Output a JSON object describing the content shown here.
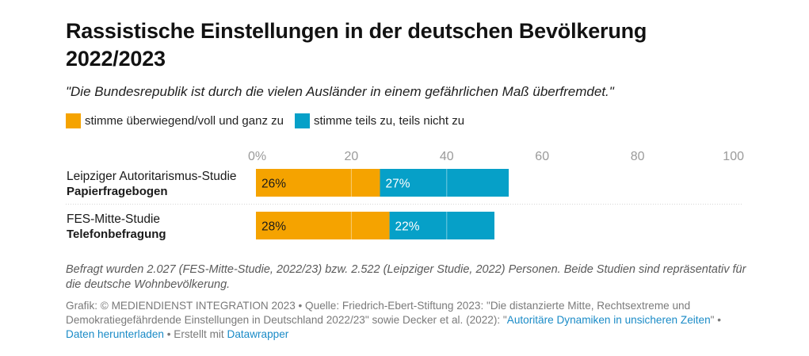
{
  "title": "Rassistische Einstellungen in der deutschen Bevölkerung 2022/2023",
  "subtitle": "\"Die Bundesrepublik ist durch die vielen Ausländer in einem gefährlichen Maß überfremdet.\"",
  "colors": {
    "agree": "#f5a300",
    "partial": "#06a0c8"
  },
  "chart_data": {
    "type": "bar",
    "orientation": "horizontal",
    "stacked": true,
    "categories": [
      {
        "line1": "Leipziger Autoritarismus-Studie",
        "line2": "Papierfragebogen"
      },
      {
        "line1": "FES-Mitte-Studie",
        "line2": "Telefonbefragung"
      }
    ],
    "series": [
      {
        "name": "stimme überwiegend/voll und ganz zu",
        "color": "#f5a300",
        "values": [
          26,
          28
        ],
        "labels": [
          "26%",
          "28%"
        ]
      },
      {
        "name": "stimme teils zu, teils nicht zu",
        "color": "#06a0c8",
        "values": [
          27,
          22
        ],
        "labels": [
          "27%",
          "22%"
        ]
      }
    ],
    "xlim": [
      0,
      100
    ],
    "xticks": [
      0,
      20,
      40,
      60,
      80,
      100
    ],
    "xtick_labels": [
      "0%",
      "20",
      "40",
      "60",
      "80",
      "100"
    ],
    "grid": true,
    "legend": "top-left"
  },
  "notes": "Befragt wurden 2.027 (FES-Mitte-Studie, 2022/23) bzw. 2.522 (Leipziger Studie, 2022) Personen. Beide Studien sind repräsentativ für die deutsche Wohnbevölkerung.",
  "footer": {
    "prefix": "Grafik: © MEDIENDIENST INTEGRATION 2023 • Quelle: Friedrich-Ebert-Stiftung 2023: \"Die distanzierte Mitte, Rechtsextreme und Demokratiegefährdende Einstellungen in Deutschland 2022/23\" sowie Decker et al. (2022): \"",
    "source_link": "Autoritäre Dynamiken in unsicheren Zeiten",
    "mid": "\" • ",
    "download_link": "Daten herunterladen",
    "created": " • Erstellt mit ",
    "tool_link": "Datawrapper"
  }
}
